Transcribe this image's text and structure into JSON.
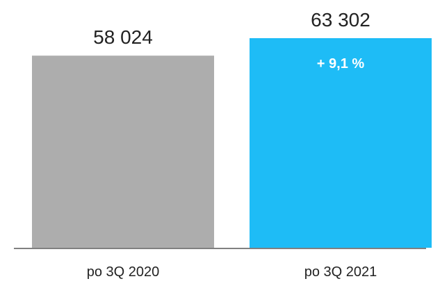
{
  "chart_data": {
    "type": "bar",
    "categories": [
      "po 3Q 2020",
      "po 3Q 2021"
    ],
    "values": [
      58024,
      63302
    ],
    "value_labels": [
      "58 024",
      "63 302"
    ],
    "change_label": "+ 9,1 %",
    "ylim": [
      0,
      63302
    ],
    "grid": false,
    "colors": [
      "#adadad",
      "#1ebcf6"
    ],
    "axis_color": "#808080"
  }
}
